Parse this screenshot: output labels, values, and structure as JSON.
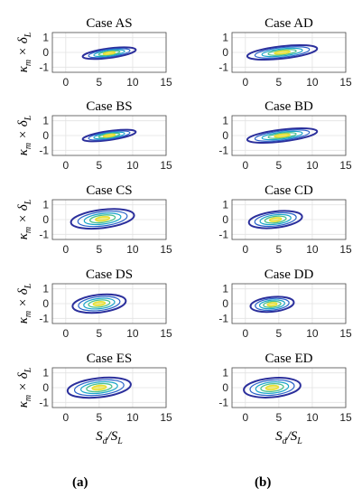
{
  "captions": {
    "a": "(a)",
    "b": "(b)"
  },
  "axis_labels": {
    "ylabel_main": "κ",
    "ylabel_sub": "m",
    "ylabel_times": " × δ",
    "ylabel_sub2": "L",
    "xlabel_main": "S",
    "xlabel_sub": "d",
    "xlabel_slash": "/S",
    "xlabel_sub2": "L"
  },
  "colors": {
    "outer": "#2b2f9c",
    "mid1": "#2a63c9",
    "mid2": "#1aa5c9",
    "inner1": "#49c08c",
    "inner2": "#e8e035"
  },
  "chart_data": [
    {
      "type": "contour",
      "title": "Case AS",
      "xlim": [
        -2,
        15
      ],
      "ylim": [
        -1,
        1
      ],
      "xticks": [
        0,
        5,
        10,
        15
      ],
      "yticks": [
        1,
        0,
        -1
      ],
      "grid": true,
      "series": [
        {
          "center": [
            6.5,
            -0.05
          ],
          "length": 8.2,
          "width": 0.32,
          "slope": -0.13,
          "x_start": 2.5,
          "x_end": 10.5
        }
      ]
    },
    {
      "type": "contour",
      "title": "Case AD",
      "xlim": [
        -2,
        15
      ],
      "ylim": [
        -1,
        1
      ],
      "xticks": [
        0,
        5,
        10,
        15
      ],
      "yticks": [
        1,
        0,
        -1
      ],
      "grid": true,
      "series": [
        {
          "center": [
            5.5,
            0.0
          ],
          "length": 10.5,
          "width": 0.42,
          "slope": -0.11,
          "x_start": 0.5,
          "x_end": 11
        }
      ]
    },
    {
      "type": "contour",
      "title": "Case BS",
      "xlim": [
        -2,
        15
      ],
      "ylim": [
        -1,
        1
      ],
      "xticks": [
        0,
        5,
        10,
        15
      ],
      "yticks": [
        1,
        0,
        -1
      ],
      "grid": true,
      "series": [
        {
          "center": [
            6.5,
            0.0
          ],
          "length": 8.0,
          "width": 0.3,
          "slope": -0.14,
          "x_start": 2.5,
          "x_end": 10.5
        }
      ]
    },
    {
      "type": "contour",
      "title": "Case BD",
      "xlim": [
        -2,
        15
      ],
      "ylim": [
        -1,
        1
      ],
      "xticks": [
        0,
        5,
        10,
        15
      ],
      "yticks": [
        1,
        0,
        -1
      ],
      "grid": true,
      "series": [
        {
          "center": [
            5.5,
            0.0
          ],
          "length": 10.5,
          "width": 0.4,
          "slope": -0.12,
          "x_start": 0.5,
          "x_end": 11
        }
      ]
    },
    {
      "type": "contour",
      "title": "Case CS",
      "xlim": [
        -2,
        15
      ],
      "ylim": [
        -1,
        1
      ],
      "xticks": [
        0,
        5,
        10,
        15
      ],
      "yticks": [
        1,
        0,
        -1
      ],
      "grid": true,
      "series": [
        {
          "center": [
            5.5,
            0.05
          ],
          "length": 9.8,
          "width": 0.62,
          "slope": -0.12,
          "x_start": 1,
          "x_end": 10.5
        }
      ]
    },
    {
      "type": "contour",
      "title": "Case CD",
      "xlim": [
        -2,
        15
      ],
      "ylim": [
        -1,
        1
      ],
      "xticks": [
        0,
        5,
        10,
        15
      ],
      "yticks": [
        1,
        0,
        -1
      ],
      "grid": true,
      "series": [
        {
          "center": [
            4.5,
            0.0
          ],
          "length": 8.0,
          "width": 0.55,
          "slope": -0.12,
          "x_start": 1,
          "x_end": 9
        }
      ]
    },
    {
      "type": "contour",
      "title": "Case DS",
      "xlim": [
        -2,
        15
      ],
      "ylim": [
        -1,
        1
      ],
      "xticks": [
        0,
        5,
        10,
        15
      ],
      "yticks": [
        1,
        0,
        -1
      ],
      "grid": true,
      "series": [
        {
          "center": [
            5.0,
            0.0
          ],
          "length": 8.5,
          "width": 0.6,
          "slope": -0.11,
          "x_start": 1.5,
          "x_end": 9.5
        }
      ]
    },
    {
      "type": "contour",
      "title": "Case DD",
      "xlim": [
        -2,
        15
      ],
      "ylim": [
        -1,
        1
      ],
      "xticks": [
        0,
        5,
        10,
        15
      ],
      "yticks": [
        1,
        0,
        -1
      ],
      "grid": true,
      "series": [
        {
          "center": [
            4.0,
            -0.05
          ],
          "length": 6.5,
          "width": 0.5,
          "slope": -0.1,
          "x_start": 1,
          "x_end": 7.5
        }
      ]
    },
    {
      "type": "contour",
      "title": "Case ES",
      "xlim": [
        -2,
        15
      ],
      "ylim": [
        -1,
        1
      ],
      "xticks": [
        0,
        5,
        10,
        15
      ],
      "yticks": [
        1,
        0,
        -1
      ],
      "grid": true,
      "series": [
        {
          "center": [
            5.0,
            0.0
          ],
          "length": 9.5,
          "width": 0.65,
          "slope": -0.11,
          "x_start": 1,
          "x_end": 10.5
        }
      ]
    },
    {
      "type": "contour",
      "title": "Case ED",
      "xlim": [
        -2,
        15
      ],
      "ylim": [
        -1,
        1
      ],
      "xticks": [
        0,
        5,
        10,
        15
      ],
      "yticks": [
        1,
        0,
        -1
      ],
      "grid": true,
      "series": [
        {
          "center": [
            4.0,
            0.0
          ],
          "length": 8.5,
          "width": 0.65,
          "slope": -0.09,
          "x_start": 0,
          "x_end": 8.5
        }
      ]
    }
  ]
}
